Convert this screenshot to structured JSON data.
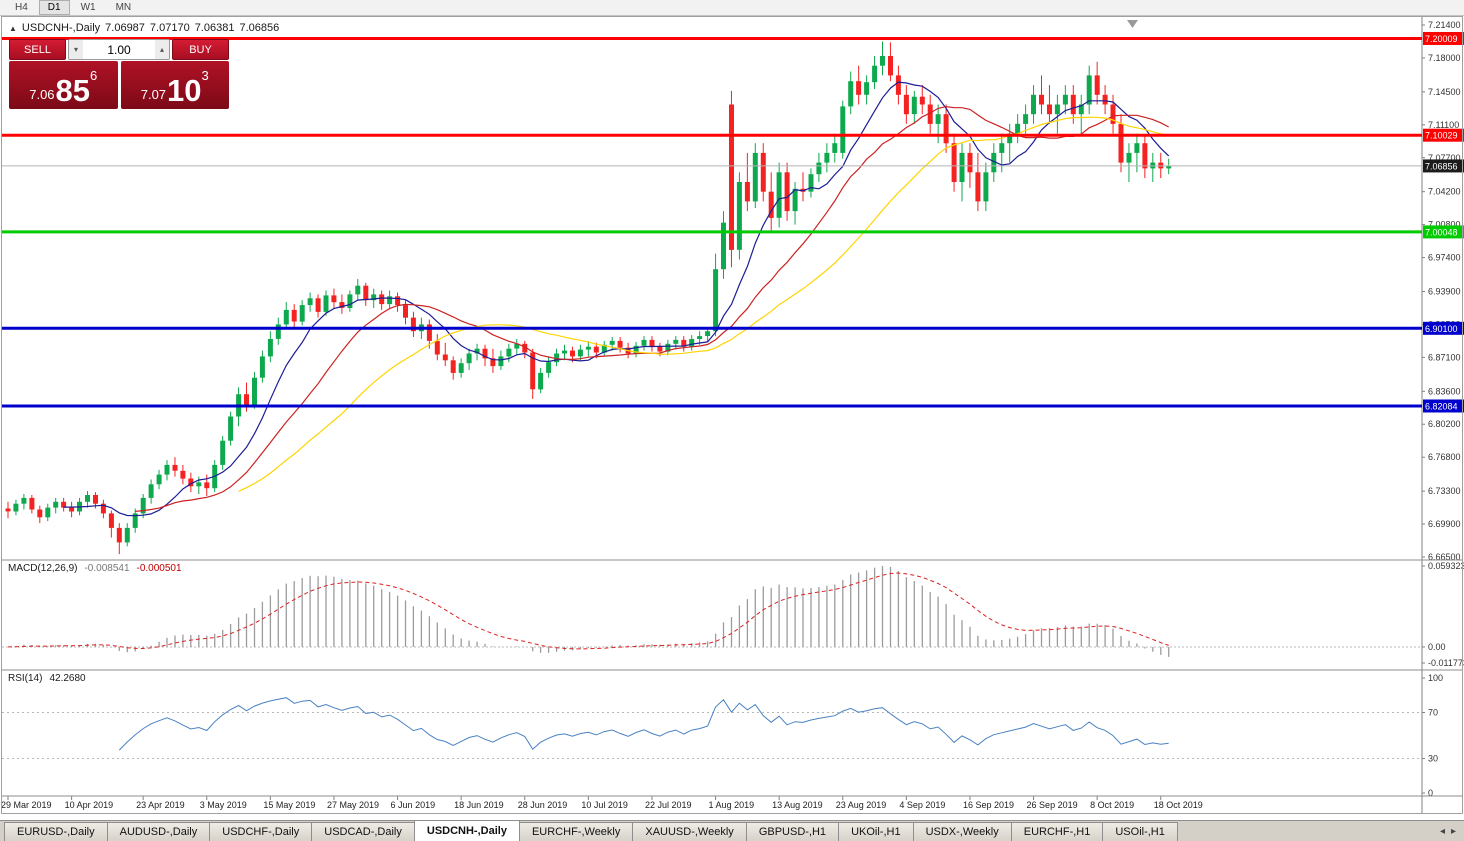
{
  "toolbar": {
    "timeframes": [
      "H4",
      "D1",
      "W1",
      "MN"
    ],
    "active": "D1"
  },
  "chart_header": {
    "marker": "▲",
    "symbol": "USDCNH-,Daily",
    "open": "7.06987",
    "high": "7.07170",
    "low": "7.06381",
    "close": "7.06856"
  },
  "trade_panel": {
    "sell_label": "SELL",
    "buy_label": "BUY",
    "volume": "1.00",
    "bid": {
      "prefix": "7.06",
      "big": "85",
      "sup": "6"
    },
    "ask": {
      "prefix": "7.07",
      "big": "10",
      "sup": "3"
    }
  },
  "icons": {
    "spin_up": "▴",
    "spin_down": "▾",
    "tab_scroll_left": "◂",
    "tab_scroll_right": "▸",
    "shift_marker": "▼"
  },
  "indicators": {
    "macd": {
      "label": "MACD(12,26,9)",
      "value": "-0.008541",
      "signal": "-0.000501",
      "axis_labels": [
        "0.059323",
        "0.00",
        "-0.011773"
      ]
    },
    "rsi": {
      "label": "RSI(14)",
      "value": "42.2680",
      "axis_labels": [
        "100",
        "70",
        "30",
        "0"
      ],
      "levels": [
        70,
        30
      ]
    }
  },
  "tabs": {
    "items": [
      {
        "label": "EURUSD-,Daily",
        "active": false
      },
      {
        "label": "AUDUSD-,Daily",
        "active": false
      },
      {
        "label": "USDCHF-,Daily",
        "active": false
      },
      {
        "label": "USDCAD-,Daily",
        "active": false
      },
      {
        "label": "USDCNH-,Daily",
        "active": true
      },
      {
        "label": "EURCHF-,Weekly",
        "active": false
      },
      {
        "label": "XAUUSD-,Weekly",
        "active": false
      },
      {
        "label": "GBPUSD-,H1",
        "active": false
      },
      {
        "label": "UKOil-,H1",
        "active": false
      },
      {
        "label": "USDX-,Weekly",
        "active": false
      },
      {
        "label": "EURCHF-,H1",
        "active": false
      },
      {
        "label": "USOil-,H1",
        "active": false
      }
    ]
  },
  "colors": {
    "bull": "#0ea94e",
    "bear": "#f52222",
    "level_red": "#ff0000",
    "level_green": "#00ca00",
    "level_blue": "#0000cc",
    "ma_fast": "#1c1c96",
    "ma_mid": "#cc2222",
    "ma_slow": "#ffd400",
    "macd_hist": "#9c9c9c",
    "macd_signal": "#dd2222",
    "rsi_line": "#4a82c2",
    "bid_line": "#b4b4b4",
    "current_price_bg": "#1c1c1c"
  },
  "chart_data": {
    "type": "candlestick",
    "symbol": "USDCNH",
    "timeframe": "Daily",
    "ylim": [
      6.665,
      7.214
    ],
    "macd_ylim": [
      -0.011773,
      0.059323
    ],
    "rsi_ylim": [
      0,
      100
    ],
    "price_axis_ticks": [
      "7.21400",
      "7.18000",
      "7.14500",
      "7.11100",
      "7.07700",
      "7.04200",
      "7.00800",
      "6.97400",
      "6.93900",
      "6.90500",
      "6.87100",
      "6.83600",
      "6.80200",
      "6.76800",
      "6.73300",
      "6.69900",
      "6.66500"
    ],
    "levels": [
      {
        "price": 7.20009,
        "label": "7.20009",
        "color": "#ff0000"
      },
      {
        "price": 7.10029,
        "label": "7.10029",
        "color": "#ff0000"
      },
      {
        "price": 7.00048,
        "label": "7.00048",
        "color": "#00ca00"
      },
      {
        "price": 6.901,
        "label": "6.90100",
        "color": "#0000cc"
      },
      {
        "price": 6.82084,
        "label": "6.82084",
        "color": "#0000cc"
      }
    ],
    "current_price": {
      "value": 7.06856,
      "label": "7.06856"
    },
    "moving_averages": [
      {
        "name": "fast-ma",
        "period": 8,
        "color": "#1c1c96"
      },
      {
        "name": "mid-ma",
        "period": 17,
        "color": "#cc2222"
      },
      {
        "name": "slow-ma",
        "period": 30,
        "color": "#ffd400"
      }
    ],
    "date_labels": [
      {
        "index": 0,
        "label": "29 Mar 2019"
      },
      {
        "index": 8,
        "label": "10 Apr 2019"
      },
      {
        "index": 17,
        "label": "23 Apr 2019"
      },
      {
        "index": 25,
        "label": "3 May 2019"
      },
      {
        "index": 33,
        "label": "15 May 2019"
      },
      {
        "index": 41,
        "label": "27 May 2019"
      },
      {
        "index": 49,
        "label": "6 Jun 2019"
      },
      {
        "index": 57,
        "label": "18 Jun 2019"
      },
      {
        "index": 65,
        "label": "28 Jun 2019"
      },
      {
        "index": 73,
        "label": "10 Jul 2019"
      },
      {
        "index": 81,
        "label": "22 Jul 2019"
      },
      {
        "index": 89,
        "label": "1 Aug 2019"
      },
      {
        "index": 97,
        "label": "13 Aug 2019"
      },
      {
        "index": 105,
        "label": "23 Aug 2019"
      },
      {
        "index": 113,
        "label": "4 Sep 2019"
      },
      {
        "index": 121,
        "label": "16 Sep 2019"
      },
      {
        "index": 129,
        "label": "26 Sep 2019"
      },
      {
        "index": 137,
        "label": "8 Oct 2019"
      },
      {
        "index": 145,
        "label": "18 Oct 2019"
      }
    ],
    "candles": [
      [
        6.715,
        6.722,
        6.705,
        6.712
      ],
      [
        6.712,
        6.724,
        6.708,
        6.72
      ],
      [
        6.72,
        6.73,
        6.714,
        6.726
      ],
      [
        6.726,
        6.729,
        6.71,
        6.714
      ],
      [
        6.714,
        6.718,
        6.7,
        6.706
      ],
      [
        6.706,
        6.72,
        6.702,
        6.716
      ],
      [
        6.716,
        6.726,
        6.71,
        6.722
      ],
      [
        6.722,
        6.726,
        6.712,
        6.716
      ],
      [
        6.716,
        6.722,
        6.706,
        6.712
      ],
      [
        6.712,
        6.726,
        6.708,
        6.722
      ],
      [
        6.722,
        6.733,
        6.716,
        6.729
      ],
      [
        6.729,
        6.732,
        6.715,
        6.72
      ],
      [
        6.72,
        6.724,
        6.705,
        6.71
      ],
      [
        6.71,
        6.713,
        6.685,
        6.695
      ],
      [
        6.695,
        6.7,
        6.668,
        6.68
      ],
      [
        6.68,
        6.7,
        6.676,
        6.695
      ],
      [
        6.695,
        6.715,
        6.69,
        6.71
      ],
      [
        6.71,
        6.73,
        6.705,
        6.726
      ],
      [
        6.726,
        6.745,
        6.72,
        6.74
      ],
      [
        6.74,
        6.755,
        6.735,
        6.75
      ],
      [
        6.75,
        6.765,
        6.744,
        6.76
      ],
      [
        6.76,
        6.768,
        6.748,
        6.754
      ],
      [
        6.754,
        6.76,
        6.74,
        6.746
      ],
      [
        6.746,
        6.752,
        6.732,
        6.738
      ],
      [
        6.738,
        6.748,
        6.73,
        6.742
      ],
      [
        6.742,
        6.75,
        6.728,
        6.736
      ],
      [
        6.736,
        6.765,
        6.732,
        6.76
      ],
      [
        6.76,
        6.79,
        6.755,
        6.785
      ],
      [
        6.785,
        6.815,
        6.78,
        6.81
      ],
      [
        6.81,
        6.84,
        6.8,
        6.833
      ],
      [
        6.833,
        6.845,
        6.815,
        6.822
      ],
      [
        6.822,
        6.856,
        6.818,
        6.85
      ],
      [
        6.85,
        6.878,
        6.845,
        6.872
      ],
      [
        6.872,
        6.898,
        6.866,
        6.89
      ],
      [
        6.89,
        6.912,
        6.884,
        6.905
      ],
      [
        6.905,
        6.928,
        6.9,
        6.92
      ],
      [
        6.92,
        6.926,
        6.9,
        6.908
      ],
      [
        6.908,
        6.93,
        6.904,
        6.925
      ],
      [
        6.925,
        6.938,
        6.918,
        6.932
      ],
      [
        6.932,
        6.936,
        6.912,
        6.918
      ],
      [
        6.918,
        6.94,
        6.914,
        6.935
      ],
      [
        6.935,
        6.942,
        6.922,
        6.928
      ],
      [
        6.928,
        6.936,
        6.916,
        6.922
      ],
      [
        6.922,
        6.94,
        6.918,
        6.936
      ],
      [
        6.936,
        6.952,
        6.93,
        6.945
      ],
      [
        6.945,
        6.948,
        6.924,
        6.93
      ],
      [
        6.93,
        6.942,
        6.922,
        6.936
      ],
      [
        6.936,
        6.94,
        6.92,
        6.926
      ],
      [
        6.926,
        6.94,
        6.922,
        6.934
      ],
      [
        6.934,
        6.938,
        6.918,
        6.925
      ],
      [
        6.925,
        6.93,
        6.905,
        6.912
      ],
      [
        6.912,
        6.918,
        6.892,
        6.898
      ],
      [
        6.898,
        6.912,
        6.89,
        6.905
      ],
      [
        6.905,
        6.91,
        6.88,
        6.888
      ],
      [
        6.888,
        6.895,
        6.868,
        6.874
      ],
      [
        6.874,
        6.886,
        6.862,
        6.868
      ],
      [
        6.868,
        6.872,
        6.848,
        6.855
      ],
      [
        6.855,
        6.87,
        6.85,
        6.865
      ],
      [
        6.865,
        6.88,
        6.858,
        6.875
      ],
      [
        6.875,
        6.885,
        6.868,
        6.88
      ],
      [
        6.88,
        6.884,
        6.862,
        6.87
      ],
      [
        6.87,
        6.88,
        6.855,
        6.862
      ],
      [
        6.862,
        6.878,
        6.858,
        6.872
      ],
      [
        6.872,
        6.885,
        6.866,
        6.88
      ],
      [
        6.88,
        6.89,
        6.874,
        6.885
      ],
      [
        6.885,
        6.888,
        6.87,
        6.876
      ],
      [
        6.876,
        6.88,
        6.828,
        6.838
      ],
      [
        6.838,
        6.86,
        6.834,
        6.855
      ],
      [
        6.855,
        6.872,
        6.85,
        6.866
      ],
      [
        6.866,
        6.88,
        6.862,
        6.875
      ],
      [
        6.875,
        6.884,
        6.868,
        6.878
      ],
      [
        6.878,
        6.882,
        6.866,
        6.872
      ],
      [
        6.872,
        6.884,
        6.868,
        6.879
      ],
      [
        6.879,
        6.888,
        6.872,
        6.882
      ],
      [
        6.882,
        6.886,
        6.87,
        6.876
      ],
      [
        6.876,
        6.888,
        6.872,
        6.884
      ],
      [
        6.884,
        6.892,
        6.878,
        6.888
      ],
      [
        6.888,
        6.892,
        6.876,
        6.881
      ],
      [
        6.881,
        6.886,
        6.87,
        6.875
      ],
      [
        6.875,
        6.887,
        6.871,
        6.883
      ],
      [
        6.883,
        6.893,
        6.878,
        6.889
      ],
      [
        6.889,
        6.893,
        6.877,
        6.882
      ],
      [
        6.882,
        6.886,
        6.872,
        6.877
      ],
      [
        6.877,
        6.889,
        6.873,
        6.885
      ],
      [
        6.885,
        6.893,
        6.879,
        6.889
      ],
      [
        6.889,
        6.893,
        6.877,
        6.882
      ],
      [
        6.882,
        6.894,
        6.878,
        6.89
      ],
      [
        6.89,
        6.898,
        6.884,
        6.893
      ],
      [
        6.893,
        6.902,
        6.887,
        6.898
      ],
      [
        6.898,
        6.978,
        6.893,
        6.962
      ],
      [
        6.962,
        7.022,
        6.952,
        7.01
      ],
      [
        7.132,
        7.146,
        6.964,
        6.982
      ],
      [
        6.982,
        7.062,
        6.972,
        7.052
      ],
      [
        7.052,
        7.082,
        7.022,
        7.032
      ],
      [
        7.032,
        7.092,
        7.025,
        7.082
      ],
      [
        7.082,
        7.092,
        7.032,
        7.042
      ],
      [
        7.042,
        7.062,
        7.002,
        7.015
      ],
      [
        7.015,
        7.072,
        7.005,
        7.062
      ],
      [
        7.062,
        7.072,
        7.012,
        7.022
      ],
      [
        7.022,
        7.052,
        7.008,
        7.045
      ],
      [
        7.045,
        7.062,
        7.032,
        7.042
      ],
      [
        7.042,
        7.066,
        7.036,
        7.06
      ],
      [
        7.06,
        7.082,
        7.052,
        7.072
      ],
      [
        7.072,
        7.092,
        7.062,
        7.082
      ],
      [
        7.082,
        7.102,
        7.072,
        7.092
      ],
      [
        7.082,
        7.136,
        7.076,
        7.13
      ],
      [
        7.13,
        7.166,
        7.122,
        7.156
      ],
      [
        7.156,
        7.172,
        7.132,
        7.142
      ],
      [
        7.142,
        7.162,
        7.132,
        7.155
      ],
      [
        7.155,
        7.182,
        7.148,
        7.172
      ],
      [
        7.172,
        7.197,
        7.162,
        7.182
      ],
      [
        7.182,
        7.196,
        7.156,
        7.162
      ],
      [
        7.162,
        7.172,
        7.132,
        7.142
      ],
      [
        7.142,
        7.152,
        7.112,
        7.122
      ],
      [
        7.122,
        7.146,
        7.112,
        7.14
      ],
      [
        7.14,
        7.152,
        7.122,
        7.132
      ],
      [
        7.132,
        7.142,
        7.102,
        7.112
      ],
      [
        7.112,
        7.132,
        7.092,
        7.122
      ],
      [
        7.122,
        7.132,
        7.082,
        7.092
      ],
      [
        7.092,
        7.102,
        7.042,
        7.052
      ],
      [
        7.052,
        7.092,
        7.032,
        7.082
      ],
      [
        7.082,
        7.092,
        7.046,
        7.062
      ],
      [
        7.062,
        7.082,
        7.022,
        7.032
      ],
      [
        7.032,
        7.072,
        7.022,
        7.062
      ],
      [
        7.062,
        7.092,
        7.052,
        7.082
      ],
      [
        7.082,
        7.102,
        7.062,
        7.092
      ],
      [
        7.092,
        7.112,
        7.072,
        7.102
      ],
      [
        7.102,
        7.122,
        7.092,
        7.112
      ],
      [
        7.112,
        7.132,
        7.102,
        7.122
      ],
      [
        7.122,
        7.152,
        7.112,
        7.142
      ],
      [
        7.142,
        7.162,
        7.122,
        7.132
      ],
      [
        7.132,
        7.152,
        7.112,
        7.122
      ],
      [
        7.122,
        7.142,
        7.102,
        7.132
      ],
      [
        7.132,
        7.152,
        7.122,
        7.142
      ],
      [
        7.142,
        7.152,
        7.112,
        7.122
      ],
      [
        7.122,
        7.142,
        7.102,
        7.132
      ],
      [
        7.132,
        7.172,
        7.122,
        7.162
      ],
      [
        7.162,
        7.176,
        7.132,
        7.142
      ],
      [
        7.142,
        7.152,
        7.122,
        7.132
      ],
      [
        7.132,
        7.142,
        7.102,
        7.112
      ],
      [
        7.112,
        7.122,
        7.062,
        7.072
      ],
      [
        7.072,
        7.092,
        7.052,
        7.082
      ],
      [
        7.082,
        7.102,
        7.062,
        7.092
      ],
      [
        7.092,
        7.1,
        7.056,
        7.066
      ],
      [
        7.066,
        7.082,
        7.052,
        7.072
      ],
      [
        7.072,
        7.082,
        7.056,
        7.066
      ],
      [
        7.066,
        7.076,
        7.06,
        7.069
      ]
    ]
  }
}
